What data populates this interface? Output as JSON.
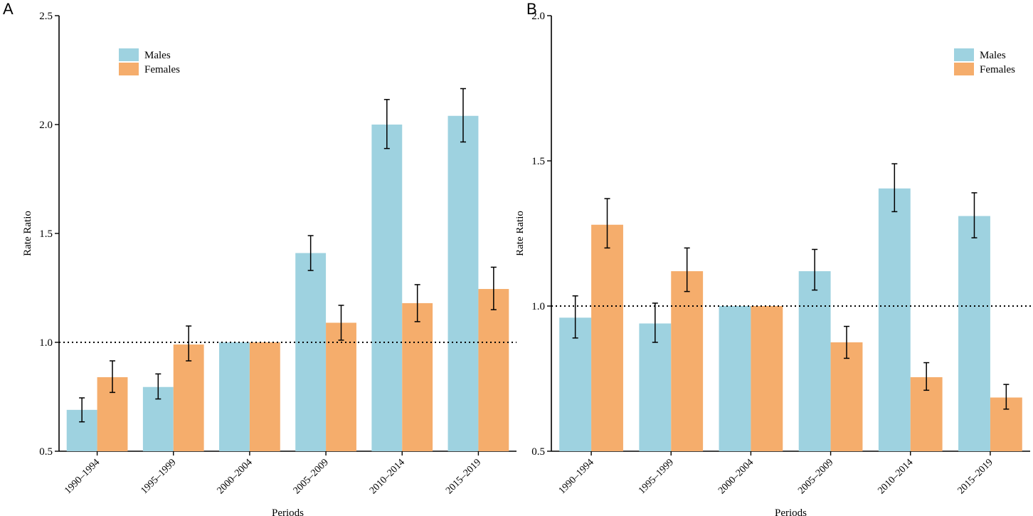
{
  "colors": {
    "males": "#9ed2e0",
    "females": "#f5ad6c",
    "axis": "#000000"
  },
  "chart_data": [
    {
      "panel": "A",
      "type": "bar",
      "categories": [
        "1990–1994",
        "1995–1999",
        "2000–2004",
        "2005–2009",
        "2010–2014",
        "2015–2019"
      ],
      "series": [
        {
          "name": "Males",
          "values": [
            0.69,
            0.795,
            1.0,
            1.41,
            2.0,
            2.04
          ],
          "err_low": [
            0.635,
            0.74,
            1.0,
            1.33,
            1.89,
            1.92
          ],
          "err_high": [
            0.745,
            0.855,
            1.0,
            1.49,
            2.115,
            2.165
          ]
        },
        {
          "name": "Females",
          "values": [
            0.84,
            0.99,
            1.0,
            1.09,
            1.18,
            1.245
          ],
          "err_low": [
            0.77,
            0.915,
            1.0,
            1.01,
            1.095,
            1.15
          ],
          "err_high": [
            0.915,
            1.075,
            1.0,
            1.17,
            1.265,
            1.345
          ]
        }
      ],
      "xlabel": "Periods",
      "ylabel": "Rate Ratio",
      "ylim": [
        0.5,
        2.5
      ],
      "yticks": [
        "0.5",
        "1.0",
        "1.5",
        "2.0",
        "2.5"
      ],
      "reference_line": 1.0,
      "legend_position": "top-left"
    },
    {
      "panel": "B",
      "type": "bar",
      "categories": [
        "1990–1994",
        "1995–1999",
        "2000–2004",
        "2005–2009",
        "2010–2014",
        "2015–2019"
      ],
      "series": [
        {
          "name": "Males",
          "values": [
            0.96,
            0.94,
            1.0,
            1.12,
            1.405,
            1.31
          ],
          "err_low": [
            0.89,
            0.875,
            1.0,
            1.055,
            1.325,
            1.235
          ],
          "err_high": [
            1.035,
            1.01,
            1.0,
            1.195,
            1.49,
            1.39
          ]
        },
        {
          "name": "Females",
          "values": [
            1.28,
            1.12,
            1.0,
            0.875,
            0.755,
            0.685
          ],
          "err_low": [
            1.2,
            1.05,
            1.0,
            0.82,
            0.71,
            0.645
          ],
          "err_high": [
            1.37,
            1.2,
            1.0,
            0.93,
            0.805,
            0.73
          ]
        }
      ],
      "xlabel": "Periods",
      "ylabel": "Rate Ratio",
      "ylim": [
        0.5,
        2.0
      ],
      "yticks": [
        "0.5",
        "1.0",
        "1.5",
        "2.0"
      ],
      "reference_line": 1.0,
      "legend_position": "top-right"
    }
  ]
}
